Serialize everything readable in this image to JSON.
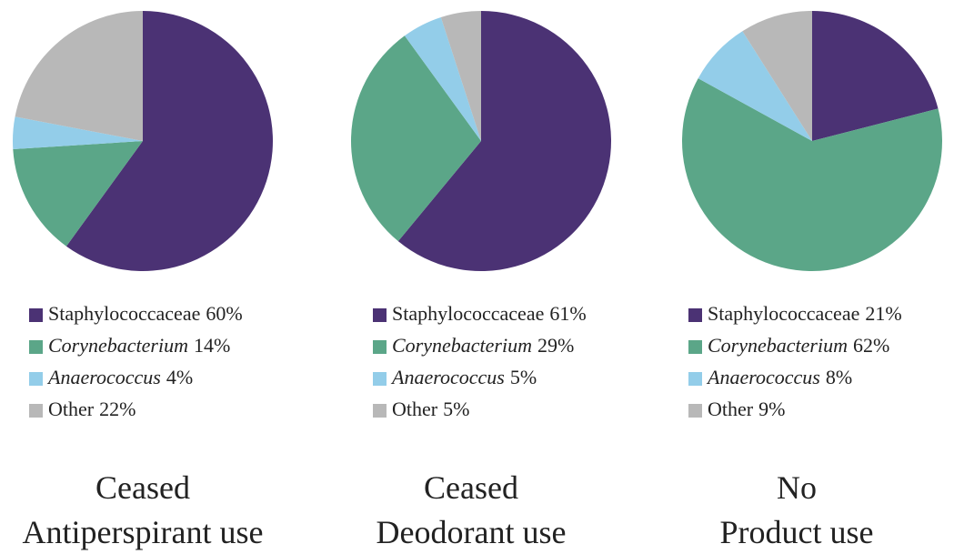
{
  "chart_data": [
    {
      "type": "pie",
      "title": [
        "Ceased",
        "Antiperspirant use"
      ],
      "categories": [
        "Staphylococcaceae",
        "Corynebacterium",
        "Anaerococcus",
        "Other"
      ],
      "values": [
        60,
        14,
        4,
        22
      ],
      "value_labels": [
        "60%",
        "14%",
        "4%",
        "22%"
      ],
      "colors": [
        "#4b3274",
        "#5ba688",
        "#93cde9",
        "#b8b8b8"
      ]
    },
    {
      "type": "pie",
      "title": [
        "Ceased",
        "Deodorant use"
      ],
      "categories": [
        "Staphylococcaceae",
        "Corynebacterium",
        "Anaerococcus",
        "Other"
      ],
      "values": [
        61,
        29,
        5,
        5
      ],
      "value_labels": [
        "61%",
        "29%",
        "5%",
        "5%"
      ],
      "colors": [
        "#4b3274",
        "#5ba688",
        "#93cde9",
        "#b8b8b8"
      ]
    },
    {
      "type": "pie",
      "title": [
        "No",
        "Product use"
      ],
      "categories": [
        "Staphylococcaceae",
        "Corynebacterium",
        "Anaerococcus",
        "Other"
      ],
      "values": [
        21,
        62,
        8,
        9
      ],
      "value_labels": [
        "21%",
        "62%",
        "8%",
        "9%"
      ],
      "colors": [
        "#4b3274",
        "#5ba688",
        "#93cde9",
        "#b8b8b8"
      ]
    }
  ]
}
